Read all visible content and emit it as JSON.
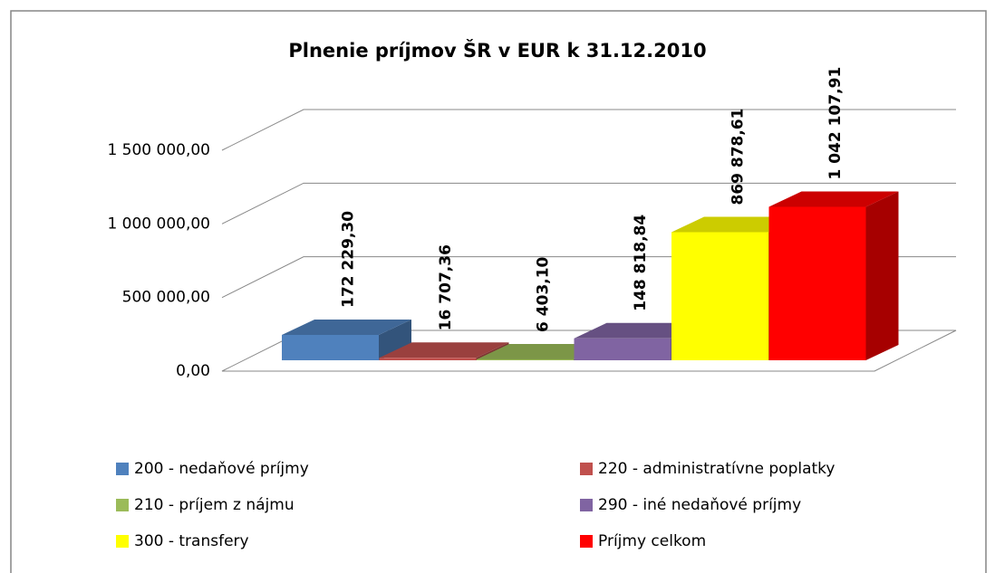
{
  "chart_data": {
    "type": "bar3d",
    "title": "Plnenie príjmov ŠR v EUR k 31.12.2010",
    "series": [
      {
        "name": "200 - nedaňové príjmy",
        "color": "#4f81bd",
        "values": [
          172229.3
        ],
        "value_labels": [
          "172 229,30"
        ]
      },
      {
        "name": "220 - administratívne poplatky",
        "color": "#c0504d",
        "values": [
          16707.36
        ],
        "value_labels": [
          "16 707,36"
        ]
      },
      {
        "name": "210 - príjem z nájmu",
        "color": "#9bbb59",
        "values": [
          6403.1
        ],
        "value_labels": [
          "6 403,10"
        ]
      },
      {
        "name": "290 - iné nedaňové príjmy",
        "color": "#8064a2",
        "values": [
          148818.84
        ],
        "value_labels": [
          "148 818,84"
        ]
      },
      {
        "name": "300 - transfery",
        "color": "#ffff00",
        "values": [
          869878.61
        ],
        "value_labels": [
          "869 878,61"
        ]
      },
      {
        "name": "Príjmy celkom",
        "color": "#ff0000",
        "values": [
          1042107.91
        ],
        "value_labels": [
          "1 042 107,91"
        ]
      }
    ],
    "ylim": [
      0,
      1500000
    ],
    "yticks": [
      {
        "value": 0,
        "label": "0,00"
      },
      {
        "value": 500000,
        "label": "500 000,00"
      },
      {
        "value": 1000000,
        "label": "1 000 000,00"
      },
      {
        "value": 1500000,
        "label": "1 500 000,00"
      }
    ],
    "grid": true,
    "legend": "bottom"
  }
}
